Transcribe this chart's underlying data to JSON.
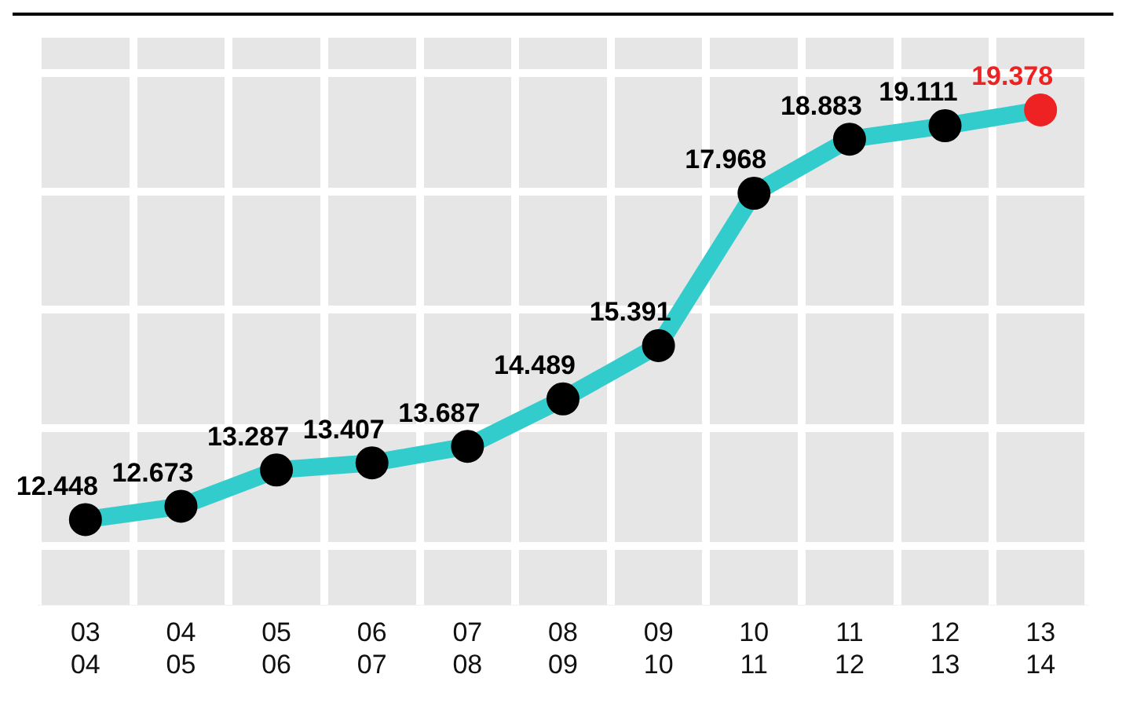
{
  "chart_data": {
    "type": "line",
    "categories": [
      "03\n04",
      "04\n05",
      "05\n06",
      "06\n07",
      "07\n08",
      "08\n09",
      "09\n10",
      "10\n11",
      "11\n12",
      "12\n13",
      "13\n14"
    ],
    "series": [
      {
        "color": "#33cccc",
        "colors": [
          "#000000",
          "#000000",
          "#000000",
          "#000000",
          "#000000",
          "#000000",
          "#000000",
          "#000000",
          "#000000",
          "#000000",
          "#ee2222"
        ],
        "values": [
          12.448,
          12.673,
          13.287,
          13.407,
          13.687,
          14.489,
          15.391,
          17.968,
          18.883,
          19.111,
          19.378
        ]
      }
    ],
    "ylim": [
      11,
      20.6
    ],
    "yticks": [
      {
        "value": 12,
        "label": null
      },
      {
        "value": 14,
        "label": null
      },
      {
        "value": 16,
        "label": null
      },
      {
        "value": 18,
        "label": null
      },
      {
        "value": 20,
        "label": null
      }
    ],
    "grid": true,
    "tick_labels": "x",
    "data_labels": true,
    "marker": "circle",
    "line_style": "solid",
    "legend": false
  }
}
